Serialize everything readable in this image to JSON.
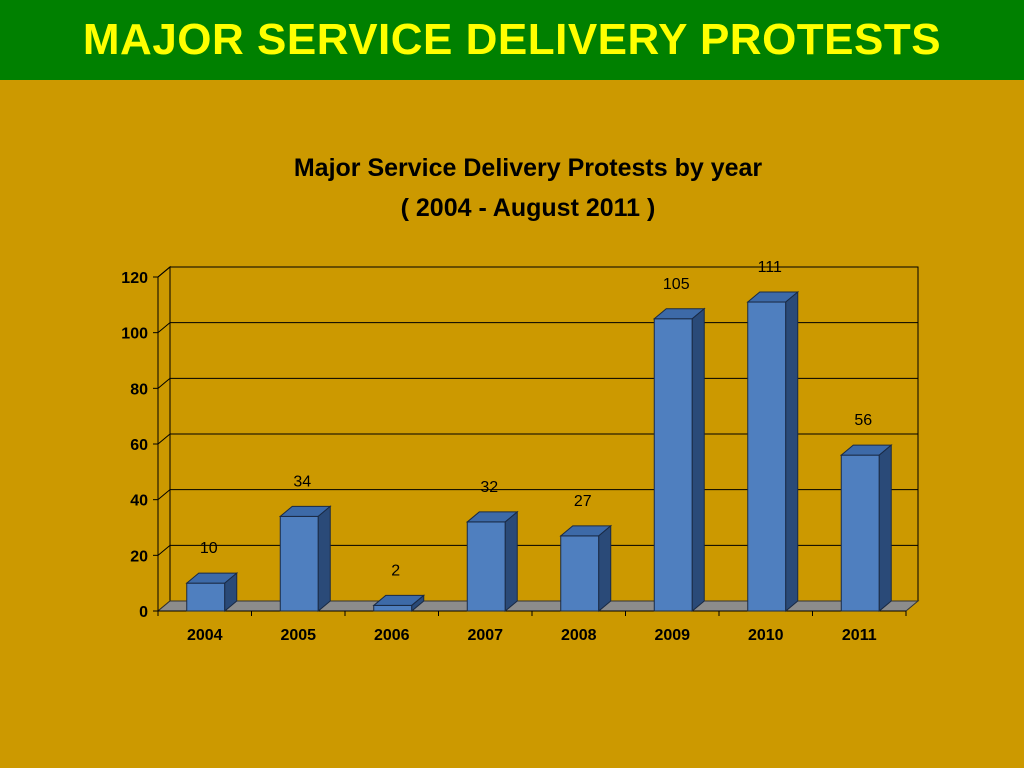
{
  "header": {
    "title": "MAJOR SERVICE DELIVERY PROTESTS"
  },
  "colors": {
    "header_bg": "#008000",
    "header_text": "#ffff00",
    "background": "#cc9900",
    "bar_front": "#4f7fbf",
    "bar_top": "#3d6aa8",
    "bar_side": "#2a4a78",
    "floor": "#8c8c8c"
  },
  "chart_data": {
    "type": "bar",
    "title": "Major Service Delivery Protests by year",
    "subtitle": "( 2004 - August 2011 )",
    "categories": [
      "2004",
      "2005",
      "2006",
      "2007",
      "2008",
      "2009",
      "2010",
      "2011"
    ],
    "values": [
      10,
      34,
      2,
      32,
      27,
      105,
      111,
      56
    ],
    "y_ticks": [
      0,
      20,
      40,
      60,
      80,
      100,
      120
    ],
    "ylim": [
      0,
      120
    ],
    "grid": true,
    "legend": false,
    "three_d": true
  }
}
